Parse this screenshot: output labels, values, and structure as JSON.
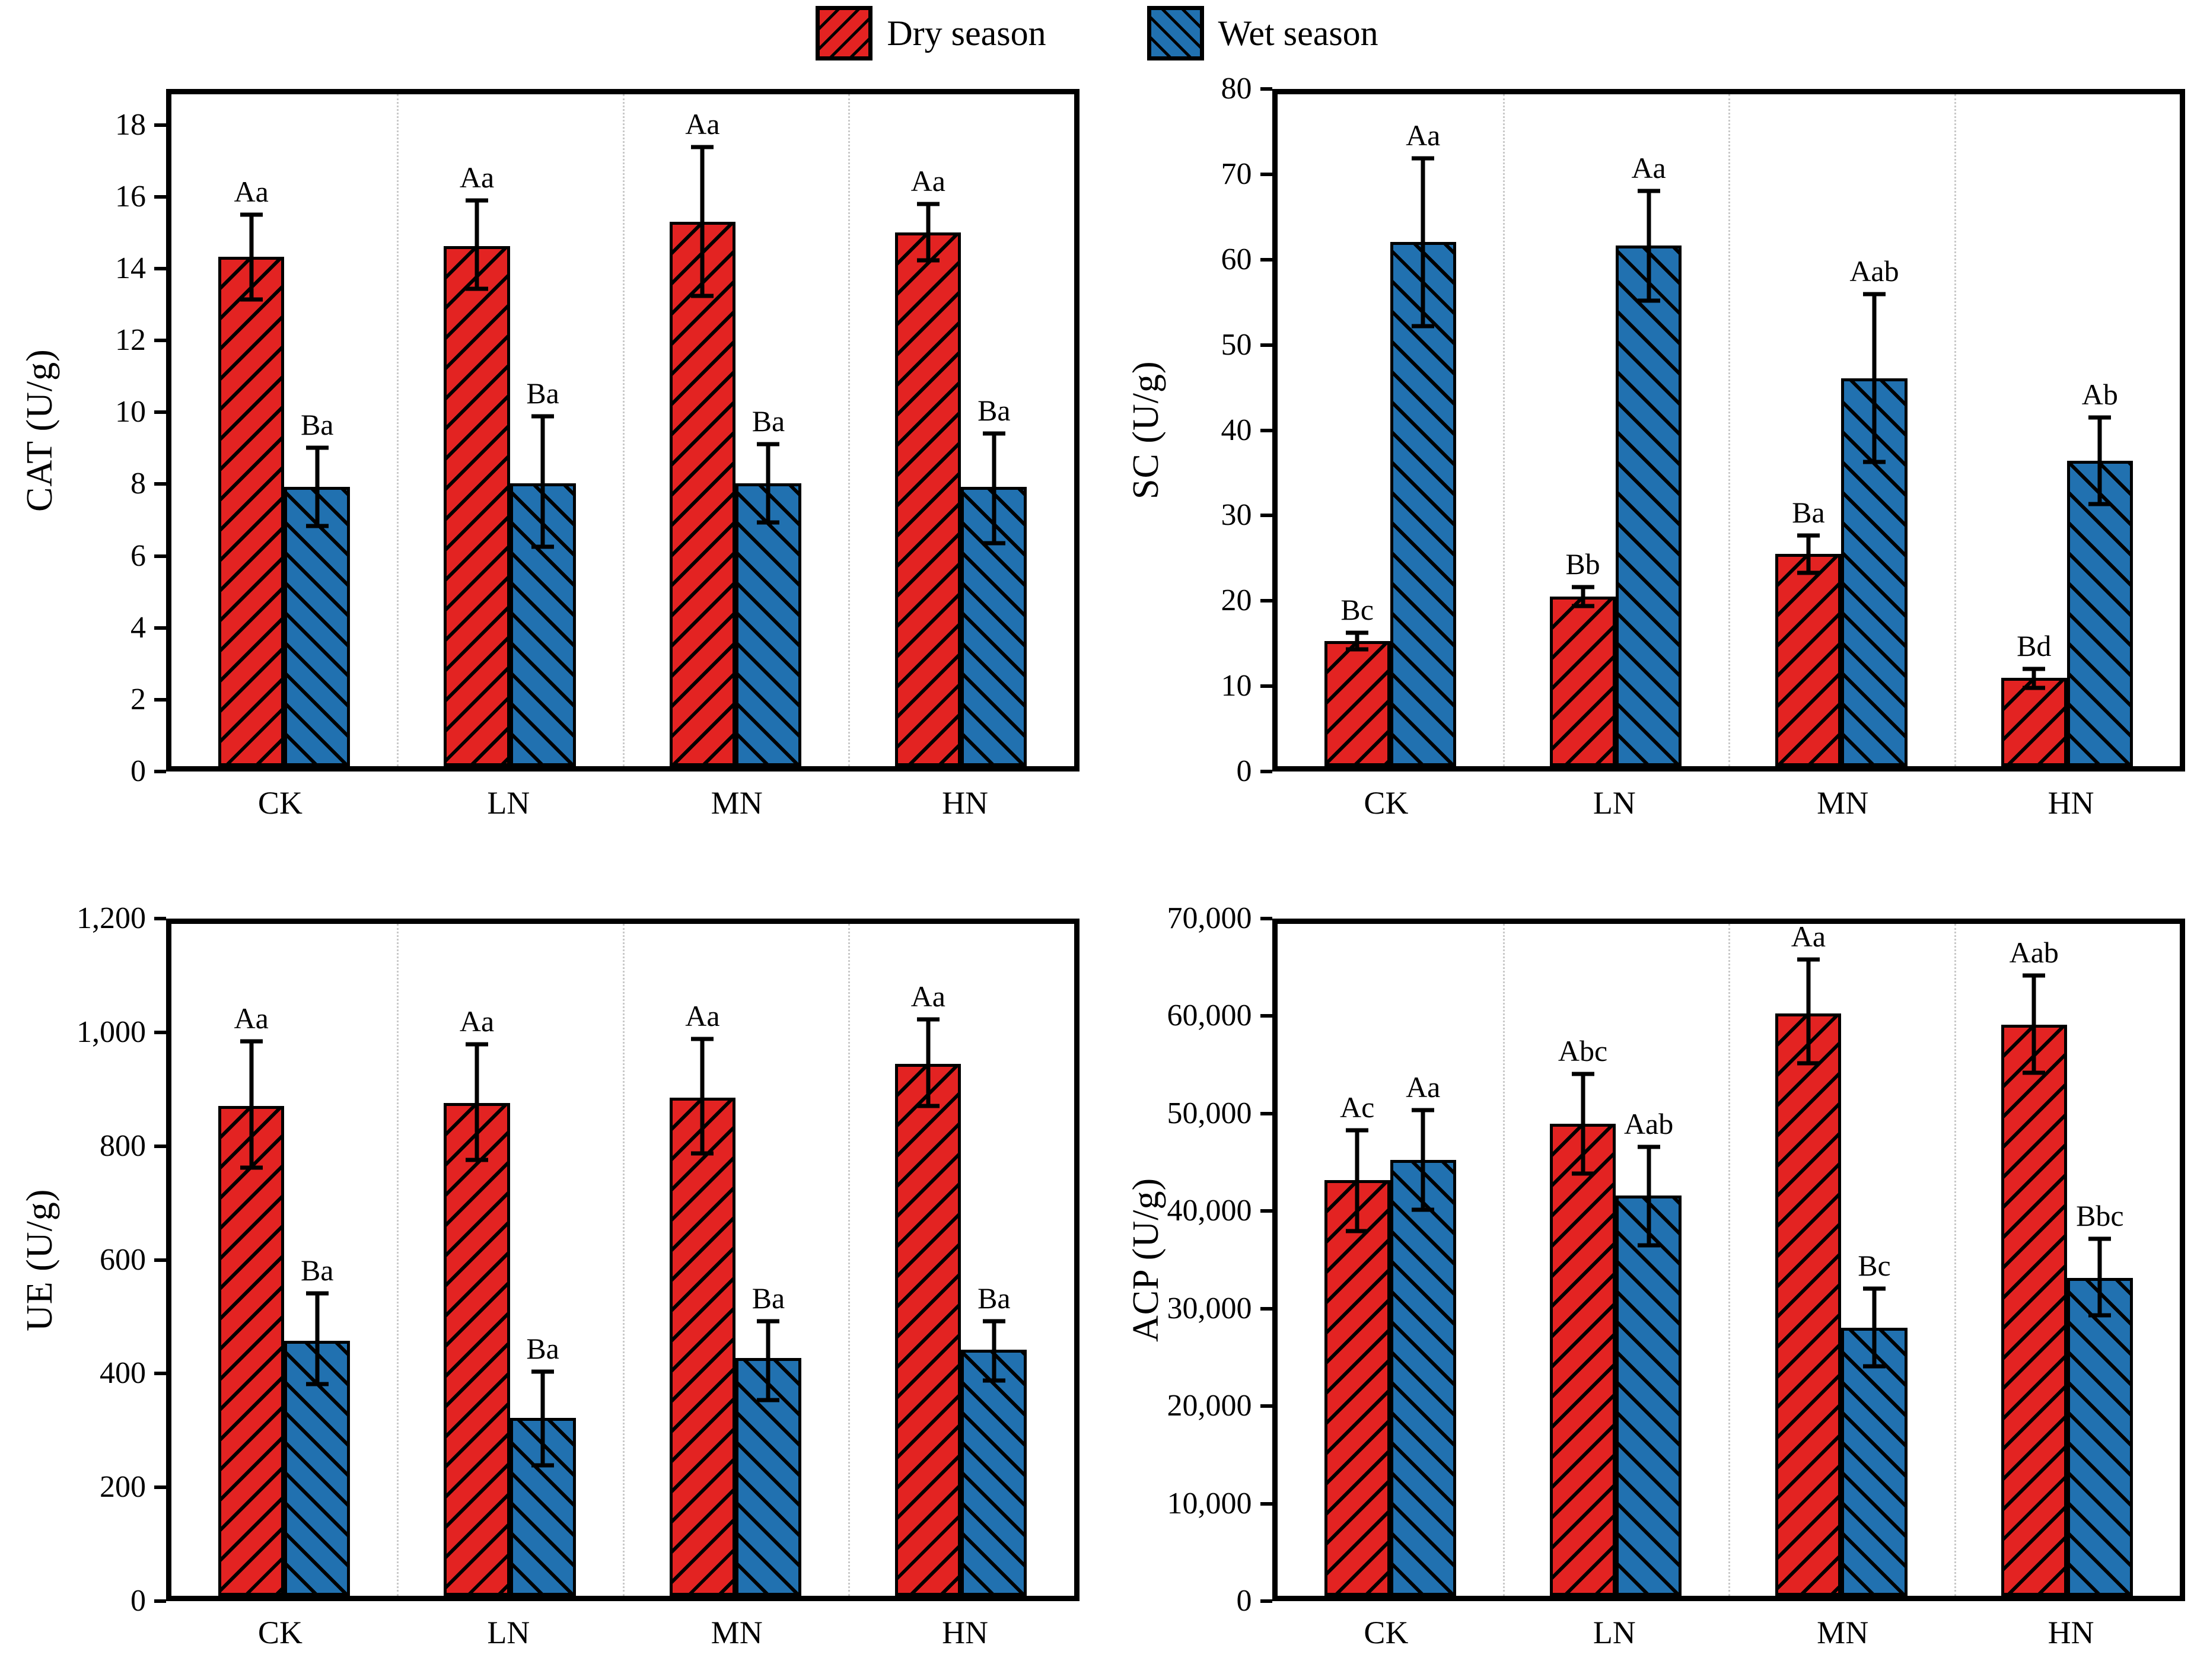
{
  "legend": {
    "items": [
      {
        "label": "Dry season",
        "key": "dry",
        "hatch": "/"
      },
      {
        "label": "Wet season",
        "key": "wet",
        "hatch": "\\"
      }
    ]
  },
  "colors": {
    "dry": "#e32322",
    "wet": "#2171b0",
    "bar_edge": "#000000",
    "error_bar": "#000000",
    "separator": "#c9c9c9"
  },
  "chart_data": [
    {
      "type": "bar",
      "ylabel": "CAT (U/g)",
      "ylim": [
        0,
        18
      ],
      "ymax_display": 19,
      "ytick_values": [
        0,
        2,
        4,
        6,
        8,
        10,
        12,
        14,
        16,
        18
      ],
      "ytick_labels": [
        "0",
        "2",
        "4",
        "6",
        "8",
        "10",
        "12",
        "14",
        "16",
        "18"
      ],
      "categories": [
        "CK",
        "LN",
        "MN",
        "HN"
      ],
      "grid": "vertical dotted separators between categories",
      "legend_position": "shared top center",
      "series": [
        {
          "name": "Dry season",
          "key": "dry",
          "hatch": "/",
          "values": [
            14.4,
            14.7,
            15.4,
            15.1
          ],
          "err_low": [
            13.2,
            13.5,
            13.3,
            14.3
          ],
          "err_high": [
            15.6,
            16.0,
            17.5,
            15.9
          ],
          "sig_labels": [
            "Aa",
            "Aa",
            "Aa",
            "Aa"
          ]
        },
        {
          "name": "Wet season",
          "key": "wet",
          "hatch": "\\",
          "values": [
            7.9,
            8.0,
            8.0,
            7.9
          ],
          "err_low": [
            6.8,
            6.2,
            6.9,
            6.3
          ],
          "err_high": [
            9.0,
            9.9,
            9.1,
            9.4
          ],
          "sig_labels": [
            "Ba",
            "Ba",
            "Ba",
            "Ba"
          ]
        }
      ]
    },
    {
      "type": "bar",
      "ylabel": "SC (U/g)",
      "ylim": [
        0,
        80
      ],
      "ymax_display": 80,
      "ytick_values": [
        0,
        10,
        20,
        30,
        40,
        50,
        60,
        70,
        80
      ],
      "ytick_labels": [
        "0",
        "10",
        "20",
        "30",
        "40",
        "50",
        "60",
        "70",
        "80"
      ],
      "categories": [
        "CK",
        "LN",
        "MN",
        "HN"
      ],
      "grid": "vertical dotted separators between categories",
      "legend_position": "shared top center",
      "series": [
        {
          "name": "Dry season",
          "key": "dry",
          "hatch": "/",
          "values": [
            14.9,
            20.2,
            25.3,
            10.5
          ],
          "err_low": [
            13.9,
            19.1,
            23.0,
            9.3
          ],
          "err_high": [
            15.9,
            21.3,
            27.5,
            11.6
          ],
          "sig_labels": [
            "Bc",
            "Bb",
            "Ba",
            "Bd"
          ]
        },
        {
          "name": "Wet season",
          "key": "wet",
          "hatch": "\\",
          "values": [
            62.4,
            62.0,
            46.2,
            36.4
          ],
          "err_low": [
            52.4,
            55.4,
            36.2,
            31.2
          ],
          "err_high": [
            72.4,
            68.5,
            56.2,
            41.5
          ],
          "sig_labels": [
            "Aa",
            "Aa",
            "Aab",
            "Ab"
          ]
        }
      ]
    },
    {
      "type": "bar",
      "ylabel": "UE (U/g)",
      "ylim": [
        0,
        1200
      ],
      "ymax_display": 1200,
      "ytick_values": [
        0,
        200,
        400,
        600,
        800,
        1000,
        1200
      ],
      "ytick_labels": [
        "0",
        "200",
        "400",
        "600",
        "800",
        "1,000",
        "1,200"
      ],
      "categories": [
        "CK",
        "LN",
        "MN",
        "HN"
      ],
      "grid": "vertical dotted separators between categories",
      "legend_position": "shared top center",
      "series": [
        {
          "name": "Dry season",
          "key": "dry",
          "hatch": "/",
          "values": [
            875,
            880,
            890,
            950
          ],
          "err_low": [
            765,
            778,
            790,
            875
          ],
          "err_high": [
            990,
            985,
            995,
            1030
          ],
          "sig_labels": [
            "Aa",
            "Aa",
            "Aa",
            "Aa"
          ]
        },
        {
          "name": "Wet season",
          "key": "wet",
          "hatch": "\\",
          "values": [
            455,
            318,
            425,
            440
          ],
          "err_low": [
            378,
            233,
            350,
            385
          ],
          "err_high": [
            540,
            400,
            490,
            490
          ],
          "sig_labels": [
            "Ba",
            "Ba",
            "Ba",
            "Ba"
          ]
        }
      ]
    },
    {
      "type": "bar",
      "ylabel": "ACP (U/g)",
      "ylim": [
        0,
        70000
      ],
      "ymax_display": 70000,
      "ytick_values": [
        0,
        10000,
        20000,
        30000,
        40000,
        50000,
        60000,
        70000
      ],
      "ytick_labels": [
        "0",
        "10,000",
        "20,000",
        "30,000",
        "40,000",
        "50,000",
        "60,000",
        "70,000"
      ],
      "categories": [
        "CK",
        "LN",
        "MN",
        "HN"
      ],
      "grid": "vertical dotted separators between categories",
      "legend_position": "shared top center",
      "series": [
        {
          "name": "Dry season",
          "key": "dry",
          "hatch": "/",
          "values": [
            43300,
            49200,
            60700,
            59500
          ],
          "err_low": [
            38000,
            44000,
            55500,
            54500
          ],
          "err_high": [
            48500,
            54400,
            66300,
            64600
          ],
          "sig_labels": [
            "Ac",
            "Abc",
            "Aa",
            "Aab"
          ]
        },
        {
          "name": "Wet season",
          "key": "wet",
          "hatch": "\\",
          "values": [
            45400,
            41700,
            27900,
            33100
          ],
          "err_low": [
            40200,
            36500,
            23900,
            29200
          ],
          "err_high": [
            50600,
            46800,
            32000,
            37200
          ],
          "sig_labels": [
            "Aa",
            "Aab",
            "Bc",
            "Bbc"
          ]
        }
      ]
    }
  ]
}
